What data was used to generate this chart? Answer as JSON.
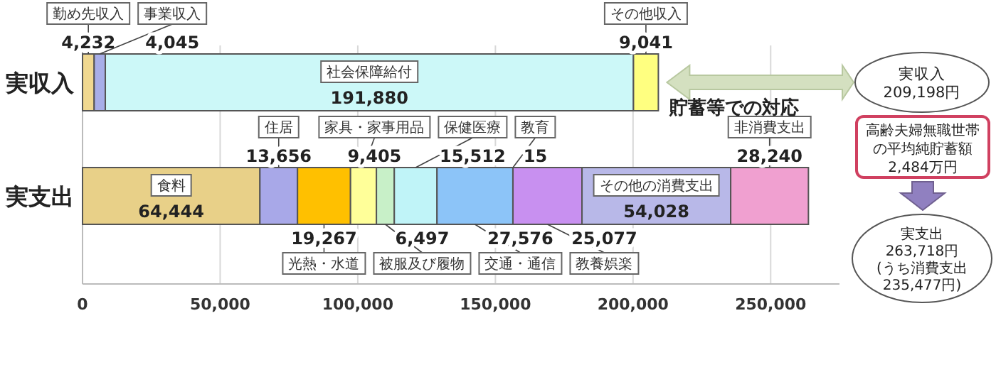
{
  "chart_data": {
    "type": "bar",
    "orientation": "horizontal",
    "stacked": true,
    "categories": [
      "実収入",
      "実支出"
    ],
    "series": [
      {
        "name": "勤め先収入",
        "color": "#f0d890",
        "values": [
          4232,
          null
        ],
        "value_labels": [
          "4,232",
          null
        ]
      },
      {
        "name": "事業収入",
        "color": "#a8aee8",
        "values": [
          4045,
          null
        ],
        "value_labels": [
          "4,045",
          null
        ]
      },
      {
        "name": "社会保障給付",
        "color": "#ccf8f8",
        "values": [
          191880,
          null
        ],
        "value_labels": [
          "191,880",
          null
        ]
      },
      {
        "name": "その他収入",
        "color": "#ffff80",
        "values": [
          9041,
          null
        ],
        "value_labels": [
          "9,041",
          null
        ]
      },
      {
        "name": "食料",
        "color": "#e8d088",
        "values": [
          null,
          64444
        ],
        "value_labels": [
          null,
          "64,444"
        ]
      },
      {
        "name": "住居",
        "color": "#a8a8e8",
        "values": [
          null,
          13656
        ],
        "value_labels": [
          null,
          "13,656"
        ]
      },
      {
        "name": "光熱・水道",
        "color": "#ffc000",
        "values": [
          null,
          19267
        ],
        "value_labels": [
          null,
          "19,267"
        ]
      },
      {
        "name": "家具・家事用品",
        "color": "#ffff99",
        "values": [
          null,
          9405
        ],
        "value_labels": [
          null,
          "9,405"
        ]
      },
      {
        "name": "被服及び履物",
        "color": "#c8f0c8",
        "values": [
          null,
          6497
        ],
        "value_labels": [
          null,
          "6,497"
        ]
      },
      {
        "name": "保健医療",
        "color": "#c0f4f8",
        "values": [
          null,
          15512
        ],
        "value_labels": [
          null,
          "15,512"
        ]
      },
      {
        "name": "交通・通信",
        "color": "#8cc4f8",
        "values": [
          null,
          27576
        ],
        "value_labels": [
          null,
          "27,576"
        ]
      },
      {
        "name": "教育",
        "color": "#3060c0",
        "values": [
          null,
          15
        ],
        "value_labels": [
          null,
          "15"
        ]
      },
      {
        "name": "教養娯楽",
        "color": "#c890f0",
        "values": [
          null,
          25077
        ],
        "value_labels": [
          null,
          "25,077"
        ]
      },
      {
        "name": "その他の消費支出",
        "color": "#b8b8e8",
        "values": [
          null,
          54028
        ],
        "value_labels": [
          null,
          "54,028"
        ]
      },
      {
        "name": "非消費支出",
        "color": "#f0a0d0",
        "values": [
          null,
          28240
        ],
        "value_labels": [
          null,
          "28,240"
        ]
      }
    ],
    "xlim": [
      0,
      275000
    ],
    "xticks": [
      {
        "value": 0,
        "label": "0"
      },
      {
        "value": 50000,
        "label": "50,000"
      },
      {
        "value": 100000,
        "label": "100,000"
      },
      {
        "value": 150000,
        "label": "150,000"
      },
      {
        "value": 200000,
        "label": "200,000"
      },
      {
        "value": 250000,
        "label": "250,000"
      }
    ],
    "grid": "x",
    "annotations": [
      {
        "text": "貯蓄等での対応",
        "x": 209198,
        "y": "実収入"
      },
      "実収入 209,198円",
      "高齢夫婦無職世帯の平均純貯蓄額 2,484万円",
      "実支出 263,718円 (うち消費支出 235,477円)"
    ]
  }
}
